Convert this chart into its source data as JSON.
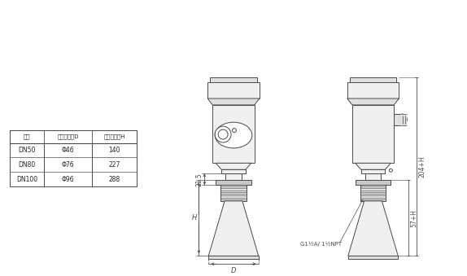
{
  "bg_color": "#ffffff",
  "line_color": "#4a4a4a",
  "fill_light": "#f0f0f0",
  "fill_mid": "#e0e0e0",
  "fill_dark": "#c8c8c8",
  "table_headers": [
    "法兰",
    "喇叭口直径D",
    "喇叭口高度H"
  ],
  "table_rows": [
    [
      "DN50",
      "Φ46",
      "140"
    ],
    [
      "DN80",
      "Φ76",
      "227"
    ],
    [
      "DN100",
      "Φ96",
      "288"
    ]
  ],
  "dim_215": "21.5",
  "dim_H": "H",
  "dim_D": "D",
  "dim_204H": "204+H",
  "dim_57H": "57+H",
  "thread_label": "G1½A/ 1½NPT"
}
